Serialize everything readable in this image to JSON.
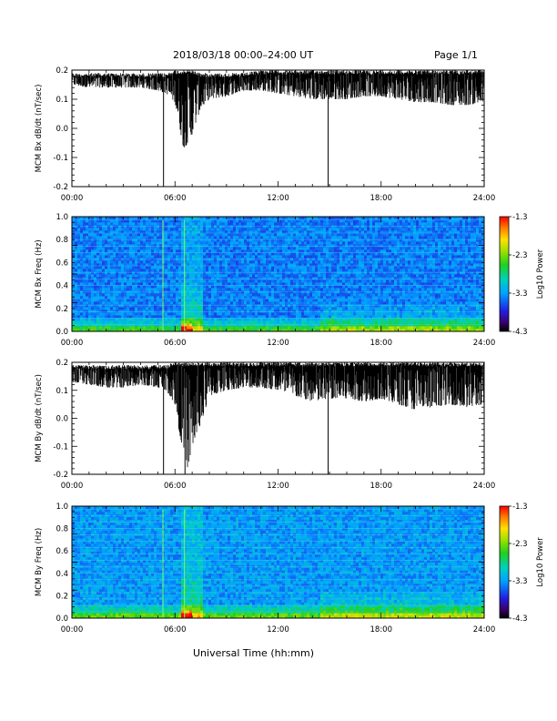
{
  "header": {
    "title": "2018/03/18   00:00–24:00 UT",
    "page": "Page 1/1"
  },
  "x_axis_title": "Universal Time (hh:mm)",
  "chart_data": [
    {
      "type": "line",
      "ylabel": "MCM Bx dB/dt (nT/sec)",
      "x_range": [
        "00:00",
        "24:00"
      ],
      "x_ticks": [
        "00:00",
        "06:00",
        "12:00",
        "18:00",
        "24:00"
      ],
      "ylim": [
        -0.2,
        0.2
      ],
      "y_ticks": [
        "0.2",
        "0.1",
        "0.0",
        "-0.1",
        "-0.2"
      ],
      "envelope": {
        "hours": [
          0,
          1,
          2,
          3,
          4,
          5,
          5.5,
          6,
          6.25,
          6.5,
          6.75,
          7,
          7.5,
          8,
          9,
          10,
          11,
          12,
          13,
          14,
          15,
          16,
          17,
          18,
          19,
          20,
          21,
          22,
          23,
          24
        ],
        "upper": [
          0.19,
          0.19,
          0.19,
          0.19,
          0.19,
          0.19,
          0.19,
          0.2,
          0.2,
          0.2,
          0.2,
          0.2,
          0.19,
          0.19,
          0.19,
          0.19,
          0.2,
          0.2,
          0.2,
          0.2,
          0.2,
          0.2,
          0.2,
          0.2,
          0.2,
          0.2,
          0.2,
          0.2,
          0.2,
          0.2
        ],
        "lower": [
          0.15,
          0.14,
          0.14,
          0.14,
          0.14,
          0.13,
          0.12,
          0.09,
          0.01,
          -0.07,
          -0.05,
          -0.02,
          0.07,
          0.1,
          0.11,
          0.13,
          0.13,
          0.12,
          0.11,
          0.1,
          0.1,
          0.1,
          0.11,
          0.11,
          0.1,
          0.09,
          0.09,
          0.08,
          0.08,
          0.09
        ]
      },
      "spikes": [
        {
          "time": "05:20",
          "value": -0.2
        },
        {
          "time": "14:55",
          "value": -0.2
        }
      ]
    },
    {
      "type": "heatmap",
      "ylabel": "MCM Bx Freq (Hz)",
      "x_range": [
        "00:00",
        "24:00"
      ],
      "x_ticks": [
        "00:00",
        "06:00",
        "12:00",
        "18:00",
        "24:00"
      ],
      "ylim": [
        0,
        1.0
      ],
      "y_ticks": [
        "1.0",
        "0.8",
        "0.6",
        "0.4",
        "0.2",
        "0.0"
      ],
      "colorbar": {
        "label": "Log10 Power",
        "range": [
          -4.3,
          -1.3
        ],
        "ticks": [
          "-1.3",
          "-2.3",
          "-3.3",
          "-4.3"
        ]
      }
    },
    {
      "type": "line",
      "ylabel": "MCM By dB/dt (nT/sec)",
      "x_range": [
        "00:00",
        "24:00"
      ],
      "x_ticks": [
        "00:00",
        "06:00",
        "12:00",
        "18:00",
        "24:00"
      ],
      "ylim": [
        -0.2,
        0.2
      ],
      "y_ticks": [
        "0.2",
        "0.1",
        "0.0",
        "-0.1",
        "-0.2"
      ],
      "envelope": {
        "hours": [
          0,
          1,
          2,
          3,
          4,
          5,
          5.5,
          6,
          6.25,
          6.5,
          6.75,
          7,
          7.5,
          8,
          9,
          10,
          11,
          12,
          13,
          14,
          15,
          16,
          17,
          18,
          19,
          20,
          21,
          22,
          23,
          24
        ],
        "upper": [
          0.19,
          0.19,
          0.19,
          0.19,
          0.19,
          0.19,
          0.19,
          0.2,
          0.2,
          0.2,
          0.2,
          0.2,
          0.2,
          0.2,
          0.2,
          0.2,
          0.2,
          0.2,
          0.2,
          0.2,
          0.2,
          0.2,
          0.2,
          0.2,
          0.2,
          0.2,
          0.2,
          0.2,
          0.2,
          0.2
        ],
        "lower": [
          0.13,
          0.12,
          0.11,
          0.11,
          0.12,
          0.11,
          0.1,
          0.05,
          -0.05,
          -0.12,
          -0.18,
          -0.1,
          -0.02,
          0.08,
          0.1,
          0.11,
          0.11,
          0.1,
          0.08,
          0.06,
          0.07,
          0.07,
          0.06,
          0.07,
          0.05,
          0.03,
          0.04,
          0.05,
          0.04,
          0.05
        ]
      },
      "spikes": [
        {
          "time": "05:20",
          "value": -0.2
        },
        {
          "time": "06:35",
          "value": -0.2
        },
        {
          "time": "14:55",
          "value": -0.2
        }
      ]
    },
    {
      "type": "heatmap",
      "ylabel": "MCM By Freq (Hz)",
      "x_range": [
        "00:00",
        "24:00"
      ],
      "x_ticks": [
        "00:00",
        "06:00",
        "12:00",
        "18:00",
        "24:00"
      ],
      "ylim": [
        0,
        1.0
      ],
      "y_ticks": [
        "1.0",
        "0.8",
        "0.6",
        "0.4",
        "0.2",
        "0.0"
      ],
      "colorbar": {
        "label": "Log10 Power",
        "range": [
          -4.3,
          -1.3
        ],
        "ticks": [
          "-1.3",
          "-2.3",
          "-3.3",
          "-4.3"
        ]
      }
    }
  ]
}
